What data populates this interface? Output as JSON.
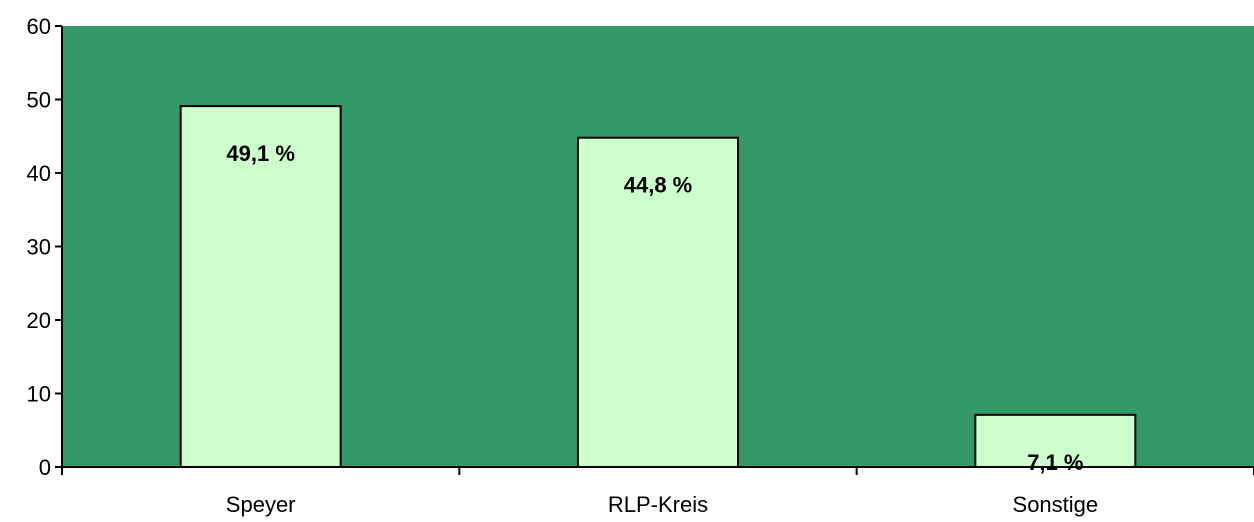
{
  "chart_data": {
    "type": "bar",
    "categories": [
      "Speyer",
      "RLP-Kreis",
      "Sonstige"
    ],
    "values": [
      49.1,
      44.8,
      7.1
    ],
    "data_labels": [
      "49,1 %",
      "44,8 %",
      "7,1 %"
    ],
    "yticks": [
      "0",
      "10",
      "20",
      "30",
      "40",
      "50",
      "60"
    ],
    "ylim": [
      0,
      60
    ],
    "title": "",
    "xlabel": "",
    "ylabel": "",
    "grid": false,
    "legend": "none",
    "colors": {
      "plot_background": "#339966",
      "bar_fill": "#ccffcc",
      "bar_stroke": "#000000",
      "axis": "#000000"
    }
  }
}
